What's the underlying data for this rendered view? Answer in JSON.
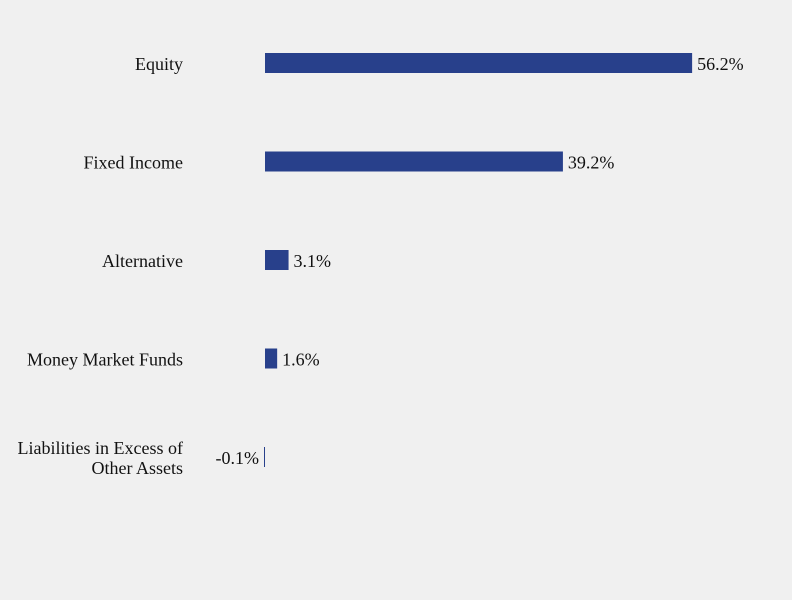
{
  "chart_data": {
    "type": "bar",
    "orientation": "horizontal",
    "categories": [
      [
        "Equity"
      ],
      [
        "Fixed Income"
      ],
      [
        "Alternative"
      ],
      [
        "Money Market Funds"
      ],
      [
        "Liabilities in Excess of",
        "Other Assets"
      ]
    ],
    "values": [
      56.2,
      39.2,
      3.1,
      1.6,
      -0.1
    ],
    "value_labels": [
      "56.2%",
      "39.2%",
      "3.1%",
      "1.6%",
      "-0.1%"
    ],
    "unit": "%",
    "title": "",
    "xlabel": "",
    "ylabel": "",
    "grid": false,
    "legend": "none",
    "colors": {
      "bar": "#28408b",
      "background": "#f0f0f0",
      "text": "#111111"
    }
  }
}
